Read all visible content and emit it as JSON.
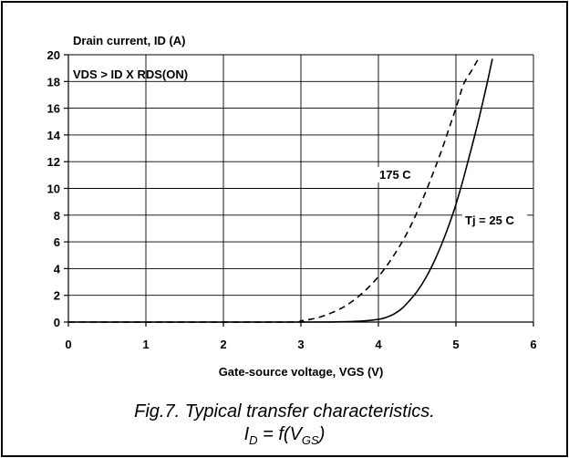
{
  "chart_data": {
    "type": "line",
    "ylabel": "Drain current, ID (A)",
    "xlabel": "Gate-source voltage, VGS (V)",
    "condition_label": "VDS > ID X RDS(ON)",
    "xlim": [
      0,
      6
    ],
    "ylim": [
      0,
      20
    ],
    "x_ticks": [
      "0",
      "1",
      "2",
      "3",
      "4",
      "5",
      "6"
    ],
    "y_ticks": [
      "0",
      "2",
      "4",
      "6",
      "8",
      "10",
      "12",
      "14",
      "16",
      "18",
      "20"
    ],
    "grid": true,
    "series": [
      {
        "name": "Tj = 25 C",
        "style": "solid",
        "x": [
          0,
          3.0,
          3.5,
          3.8,
          4.0,
          4.1,
          4.2,
          4.3,
          4.4,
          4.5,
          4.6,
          4.7,
          4.8,
          4.9,
          5.0,
          5.1,
          5.2,
          5.3,
          5.4,
          5.47
        ],
        "y": [
          0,
          0,
          0.02,
          0.08,
          0.2,
          0.35,
          0.6,
          1.0,
          1.6,
          2.3,
          3.2,
          4.3,
          5.6,
          7.1,
          8.8,
          10.8,
          13.0,
          15.3,
          17.8,
          19.7
        ]
      },
      {
        "name": "175 C",
        "style": "dashed",
        "x": [
          0,
          2.8,
          3.0,
          3.2,
          3.4,
          3.6,
          3.8,
          4.0,
          4.2,
          4.4,
          4.6,
          4.8,
          4.9,
          5.0,
          5.1,
          5.2,
          5.28
        ],
        "y": [
          0,
          0,
          0.1,
          0.3,
          0.7,
          1.3,
          2.2,
          3.4,
          5.0,
          7.0,
          9.6,
          12.6,
          14.3,
          16.0,
          17.8,
          18.8,
          19.6
        ]
      }
    ],
    "series_labels": [
      "175 C",
      "Tj = 25 C"
    ]
  },
  "caption": {
    "line1": "Fig.7.   Typical transfer characteristics.",
    "line2_i": "I",
    "line2_i_sub": "D",
    "line2_mid": " = f(V",
    "line2_v_sub": "GS",
    "line2_end": ")"
  }
}
